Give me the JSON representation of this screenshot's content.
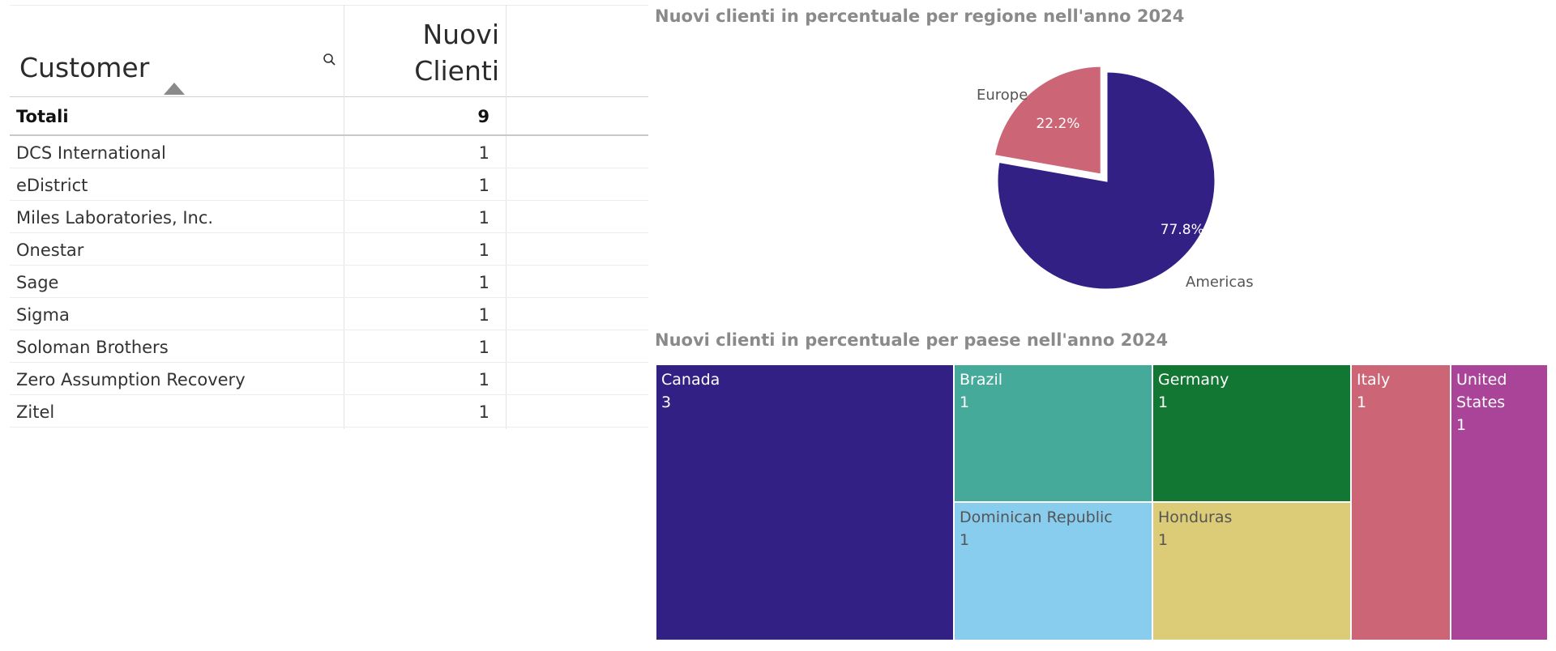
{
  "table": {
    "header_customer": "Customer",
    "header_new_clients": "Nuovi Clienti",
    "totals_label": "Totali",
    "totals_value": "9",
    "rows": [
      {
        "name": "DCS International",
        "value": "1"
      },
      {
        "name": "eDistrict",
        "value": "1"
      },
      {
        "name": "Miles Laboratories, Inc.",
        "value": "1"
      },
      {
        "name": "Onestar",
        "value": "1"
      },
      {
        "name": "Sage",
        "value": "1"
      },
      {
        "name": "Sigma",
        "value": "1"
      },
      {
        "name": "Soloman Brothers",
        "value": "1"
      },
      {
        "name": "Zero Assumption Recovery",
        "value": "1"
      },
      {
        "name": "Zitel",
        "value": "1"
      }
    ]
  },
  "pie": {
    "title": "Nuovi clienti in percentuale per regione nell'anno 2024",
    "slices": [
      {
        "label": "Americas",
        "value": 77.8,
        "percent_label": "77.8%",
        "color": "#332085"
      },
      {
        "label": "Europe",
        "value": 22.2,
        "percent_label": "22.2%",
        "color": "#cc6677"
      }
    ]
  },
  "treemap": {
    "title": "Nuovi clienti in percentuale per paese nell'anno 2024",
    "tiles": [
      {
        "name": "Canada",
        "value": "3",
        "color": "#332085",
        "text_color": "#ffffff"
      },
      {
        "name": "Brazil",
        "value": "1",
        "color": "#45aa9a",
        "text_color": "#ffffff"
      },
      {
        "name": "Dominican Republic",
        "value": "1",
        "color": "#88ccee",
        "text_color": "#555555"
      },
      {
        "name": "Germany",
        "value": "1",
        "color": "#117733",
        "text_color": "#ffffff"
      },
      {
        "name": "Honduras",
        "value": "1",
        "color": "#ddcc77",
        "text_color": "#555555"
      },
      {
        "name": "Italy",
        "value": "1",
        "color": "#cc6677",
        "text_color": "#ffffff"
      },
      {
        "name": "United States",
        "value": "1",
        "color": "#aa4499",
        "text_color": "#ffffff"
      }
    ]
  },
  "chart_data": [
    {
      "type": "pie",
      "title": "Nuovi clienti in percentuale per regione nell'anno 2024",
      "categories": [
        "Americas",
        "Europe"
      ],
      "values": [
        77.8,
        22.2
      ]
    },
    {
      "type": "treemap",
      "title": "Nuovi clienti in percentuale per paese nell'anno 2024",
      "categories": [
        "Canada",
        "Brazil",
        "Dominican Republic",
        "Germany",
        "Honduras",
        "Italy",
        "United States"
      ],
      "values": [
        3,
        1,
        1,
        1,
        1,
        1,
        1
      ]
    }
  ]
}
